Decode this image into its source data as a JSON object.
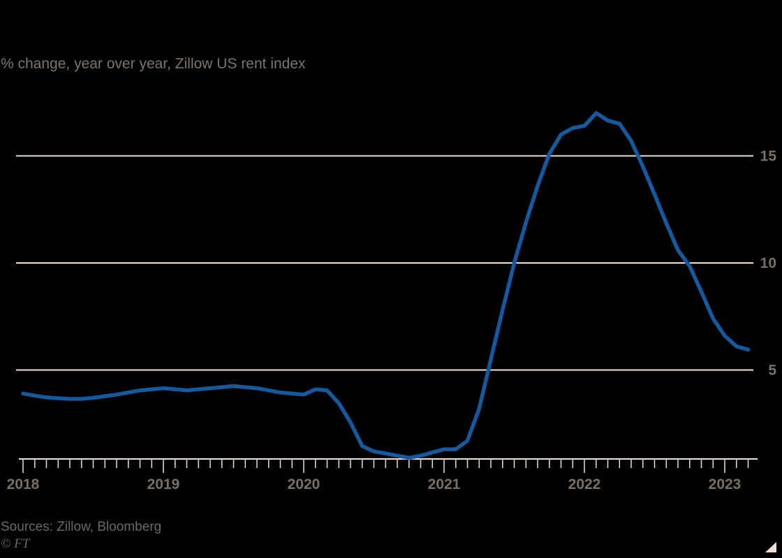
{
  "footer": {
    "sources": "Sources: Zillow, Bloomberg",
    "copyright": "© FT"
  },
  "colors": {
    "background": "#000000",
    "line": "#15599F",
    "grid": "#F2DFCE",
    "axis": "#F2DFCE",
    "corner_mark": "#F2DFCE",
    "subtitle_text": "#7D756B",
    "axis_label_text": "#7A7166",
    "footer_text": "#6F6861"
  },
  "chart_data": {
    "type": "line",
    "title": "",
    "subtitle": "% change, year over year, Zillow US rent index",
    "xlabel": "",
    "ylabel": "",
    "x_unit": "month",
    "x_start": "2018-01",
    "x_end": "2023-03",
    "grid": "horizontal",
    "legend": "none",
    "ylim": [
      0.85,
      17.8
    ],
    "ytick_values": [
      15,
      10,
      5
    ],
    "ytick_labels": [
      "15",
      "10",
      "5"
    ],
    "xtick_year_labels": [
      "2018",
      "2019",
      "2020",
      "2021",
      "2022",
      "2023"
    ],
    "x": [
      "2018-01",
      "2018-02",
      "2018-03",
      "2018-04",
      "2018-05",
      "2018-06",
      "2018-07",
      "2018-08",
      "2018-09",
      "2018-10",
      "2018-11",
      "2018-12",
      "2019-01",
      "2019-02",
      "2019-03",
      "2019-04",
      "2019-05",
      "2019-06",
      "2019-07",
      "2019-08",
      "2019-09",
      "2019-10",
      "2019-11",
      "2019-12",
      "2020-01",
      "2020-02",
      "2020-03",
      "2020-04",
      "2020-05",
      "2020-06",
      "2020-07",
      "2020-08",
      "2020-09",
      "2020-10",
      "2020-11",
      "2020-12",
      "2021-01",
      "2021-02",
      "2021-03",
      "2021-04",
      "2021-05",
      "2021-06",
      "2021-07",
      "2021-08",
      "2021-09",
      "2021-10",
      "2021-11",
      "2021-12",
      "2022-01",
      "2022-02",
      "2022-03",
      "2022-04",
      "2022-05",
      "2022-06",
      "2022-07",
      "2022-08",
      "2022-09",
      "2022-10",
      "2022-11",
      "2022-12",
      "2023-01",
      "2023-02",
      "2023-03"
    ],
    "series": [
      {
        "name": "Zillow US rent index, % change year over year",
        "color": "#15599F",
        "values": [
          3.9,
          3.8,
          3.72,
          3.68,
          3.65,
          3.65,
          3.7,
          3.78,
          3.85,
          3.95,
          4.05,
          4.1,
          4.15,
          4.1,
          4.05,
          4.1,
          4.15,
          4.2,
          4.25,
          4.2,
          4.15,
          4.05,
          3.95,
          3.9,
          3.85,
          4.1,
          4.05,
          3.45,
          2.55,
          1.45,
          1.2,
          1.1,
          1.0,
          0.9,
          1.0,
          1.15,
          1.3,
          1.3,
          1.7,
          3.2,
          5.5,
          7.8,
          10.0,
          11.9,
          13.6,
          15.1,
          16.0,
          16.3,
          16.4,
          17.0,
          16.65,
          16.5,
          15.7,
          14.5,
          13.2,
          11.85,
          10.6,
          9.85,
          8.65,
          7.4,
          6.6,
          6.1,
          5.95
        ]
      }
    ]
  }
}
